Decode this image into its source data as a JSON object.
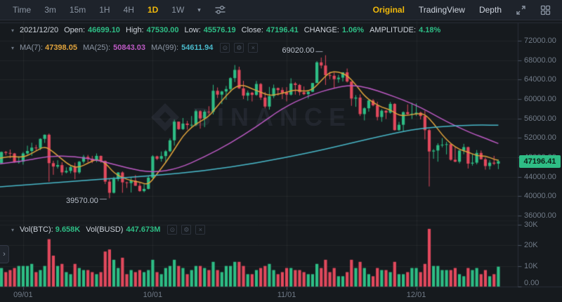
{
  "toolbar": {
    "time_label": "Time",
    "intervals": [
      "3m",
      "15m",
      "1H",
      "4H",
      "1D",
      "1W"
    ],
    "active_interval": "1D",
    "views": [
      "Original",
      "TradingView",
      "Depth"
    ],
    "active_view": "Original"
  },
  "legend": {
    "date": "2021/12/20",
    "open_label": "Open:",
    "open_value": "46699.10",
    "high_label": "High:",
    "high_value": "47530.00",
    "low_label": "Low:",
    "low_value": "45576.19",
    "close_label": "Close:",
    "close_value": "47196.41",
    "change_label": "CHANGE:",
    "change_value": "1.06%",
    "amplitude_label": "AMPLITUDE:",
    "amplitude_value": "4.18%"
  },
  "ma_legend": {
    "ma7_label": "MA(7):",
    "ma7_value": "47398.05",
    "ma25_label": "MA(25):",
    "ma25_value": "50843.03",
    "ma99_label": "MA(99):",
    "ma99_value": "54611.94"
  },
  "volume_legend": {
    "btc_label": "Vol(BTC):",
    "btc_value": "9.658K",
    "busd_label": "Vol(BUSD)",
    "busd_value": "447.673M"
  },
  "price_badge": "47196.41",
  "watermark": "BINANCE",
  "icons": {
    "caret_down": "▾",
    "chevron_right": "›",
    "eye": "⊙",
    "gear": "⚙",
    "close": "×"
  },
  "colors": {
    "up": "#2ebd85",
    "down": "#e2495d",
    "ma7": "#e0a33c",
    "ma25": "#bd5ac4",
    "ma99": "#49b8c9",
    "accent": "#f0b90b",
    "axis_text": "#717b88",
    "grid": "rgba(255,255,255,0.05)",
    "frame": "#2a2f39",
    "tick": "#4d5666",
    "badge_bg": "#2ebd85",
    "annotation": "#9aa2ae"
  },
  "chart_data": {
    "type": "candlestick",
    "interval": "1D",
    "ylim": [
      36000,
      72000
    ],
    "vol_ylim": [
      0,
      30
    ],
    "grid": "on",
    "last_price": 47196.41,
    "y_ticks": [
      {
        "label": "72000.00",
        "value": 72000
      },
      {
        "label": "68000.00",
        "value": 68000
      },
      {
        "label": "64000.00",
        "value": 64000
      },
      {
        "label": "60000.00",
        "value": 60000
      },
      {
        "label": "56000.00",
        "value": 56000
      },
      {
        "label": "52000.00",
        "value": 52000
      },
      {
        "label": "48000.00",
        "value": 48000
      },
      {
        "label": "44000.00",
        "value": 44000
      },
      {
        "label": "40000.00",
        "value": 40000
      },
      {
        "label": "36000.00",
        "value": 36000
      }
    ],
    "vol_ticks": [
      {
        "label": "30K",
        "value": 30
      },
      {
        "label": "20K",
        "value": 20
      },
      {
        "label": "10K",
        "value": 10
      },
      {
        "label": "0.00",
        "value": 0
      }
    ],
    "x_ticks": [
      {
        "label": "09/01",
        "index": 6
      },
      {
        "label": "10/01",
        "index": 36
      },
      {
        "label": "11/01",
        "index": 67
      },
      {
        "label": "12/01",
        "index": 97
      }
    ],
    "annotations": [
      {
        "text": "69020.00",
        "index": 76,
        "price": 69020,
        "anchor": "high"
      },
      {
        "text": "39570.00",
        "index": 26,
        "price": 39570,
        "anchor": "low"
      }
    ],
    "candles": [
      [
        48900,
        49300,
        46300,
        46800,
        11
      ],
      [
        46800,
        49200,
        46600,
        49100,
        9
      ],
      [
        49100,
        49300,
        48400,
        48900,
        7
      ],
      [
        48900,
        49600,
        47800,
        48800,
        8
      ],
      [
        48800,
        48900,
        46900,
        47000,
        9
      ],
      [
        47000,
        48200,
        46700,
        47100,
        10
      ],
      [
        47100,
        49100,
        46500,
        48800,
        10
      ],
      [
        48800,
        50400,
        48600,
        49300,
        10
      ],
      [
        49300,
        51000,
        48300,
        50000,
        11
      ],
      [
        50000,
        50550,
        49400,
        49900,
        7
      ],
      [
        49900,
        51900,
        49500,
        51800,
        8
      ],
      [
        51800,
        52700,
        50970,
        52650,
        10
      ],
      [
        52650,
        52900,
        43000,
        46800,
        23
      ],
      [
        46800,
        47300,
        44400,
        46100,
        15
      ],
      [
        46100,
        47400,
        45700,
        46400,
        10
      ],
      [
        46400,
        47000,
        44300,
        44900,
        11
      ],
      [
        44900,
        45950,
        44700,
        45200,
        7
      ],
      [
        45200,
        46400,
        44700,
        46000,
        6
      ],
      [
        46000,
        46900,
        43500,
        44900,
        11
      ],
      [
        44900,
        47250,
        44600,
        47100,
        9
      ],
      [
        47100,
        48500,
        46700,
        48100,
        8
      ],
      [
        48100,
        48500,
        47000,
        47700,
        8
      ],
      [
        47700,
        48300,
        46800,
        47300,
        7
      ],
      [
        47300,
        48800,
        47000,
        48300,
        6
      ],
      [
        48300,
        48350,
        46880,
        47250,
        7
      ],
      [
        47250,
        47350,
        42500,
        43000,
        17
      ],
      [
        43000,
        43600,
        39570,
        40700,
        18
      ],
      [
        40700,
        44000,
        40550,
        43550,
        13
      ],
      [
        43550,
        44950,
        43070,
        44880,
        9
      ],
      [
        44880,
        45100,
        40700,
        42850,
        14
      ],
      [
        42850,
        42990,
        41700,
        42700,
        6
      ],
      [
        42700,
        43900,
        40750,
        43200,
        8
      ],
      [
        43200,
        44350,
        42100,
        42150,
        7
      ],
      [
        42150,
        42750,
        40900,
        41050,
        8
      ],
      [
        41050,
        42600,
        40800,
        41500,
        7
      ],
      [
        41500,
        44100,
        41400,
        43800,
        8
      ],
      [
        43800,
        48450,
        43300,
        48200,
        13
      ],
      [
        48200,
        48340,
        47440,
        47700,
        7
      ],
      [
        47700,
        49200,
        47100,
        48250,
        6
      ],
      [
        48250,
        49530,
        46900,
        49250,
        9
      ],
      [
        49250,
        51880,
        49070,
        51500,
        10
      ],
      [
        51500,
        55750,
        50400,
        55350,
        13
      ],
      [
        55350,
        55350,
        53650,
        53800,
        10
      ],
      [
        53800,
        56100,
        53630,
        54950,
        9
      ],
      [
        54950,
        55500,
        53700,
        54650,
        6
      ],
      [
        54650,
        56500,
        54100,
        54700,
        8
      ],
      [
        54700,
        57840,
        54400,
        57500,
        10
      ],
      [
        57500,
        57680,
        53900,
        56000,
        10
      ],
      [
        56000,
        57780,
        54200,
        57400,
        9
      ],
      [
        57400,
        58520,
        56810,
        57350,
        8
      ],
      [
        57350,
        62930,
        56830,
        61700,
        12
      ],
      [
        61700,
        62380,
        60200,
        60900,
        8
      ],
      [
        60900,
        61700,
        58960,
        61550,
        7
      ],
      [
        61550,
        62700,
        59850,
        62050,
        10
      ],
      [
        62050,
        64500,
        61400,
        64300,
        10
      ],
      [
        64300,
        67000,
        63500,
        66000,
        12
      ],
      [
        66000,
        66650,
        62100,
        62200,
        12
      ],
      [
        62200,
        63750,
        60000,
        60700,
        10
      ],
      [
        60700,
        61750,
        59650,
        61300,
        6
      ],
      [
        61300,
        61500,
        59500,
        60850,
        6
      ],
      [
        60850,
        63720,
        60650,
        63100,
        8
      ],
      [
        63100,
        63290,
        59820,
        60300,
        9
      ],
      [
        60300,
        61450,
        58100,
        58450,
        10
      ],
      [
        58450,
        62500,
        57820,
        60600,
        11
      ],
      [
        60600,
        62980,
        60170,
        62250,
        8
      ],
      [
        62250,
        62360,
        60700,
        61850,
        6
      ],
      [
        61850,
        62400,
        60000,
        61300,
        7
      ],
      [
        61300,
        62450,
        59510,
        60900,
        9
      ],
      [
        60900,
        64270,
        60700,
        63200,
        9
      ],
      [
        63200,
        63500,
        60900,
        62900,
        8
      ],
      [
        62900,
        63100,
        60750,
        61400,
        8
      ],
      [
        61400,
        62590,
        60800,
        61000,
        7
      ],
      [
        61000,
        61590,
        60100,
        61500,
        6
      ],
      [
        61500,
        63300,
        61400,
        63300,
        6
      ],
      [
        63300,
        67800,
        63300,
        67550,
        11
      ],
      [
        67550,
        68530,
        66300,
        66900,
        9
      ],
      [
        66900,
        69020,
        62900,
        64900,
        13
      ],
      [
        64900,
        65600,
        64100,
        64800,
        7
      ],
      [
        64800,
        65460,
        62300,
        64100,
        9
      ],
      [
        64100,
        64980,
        63360,
        64400,
        5
      ],
      [
        64400,
        65500,
        63600,
        65500,
        5
      ],
      [
        65500,
        66280,
        63400,
        63600,
        7
      ],
      [
        63600,
        63600,
        58600,
        60100,
        13
      ],
      [
        60100,
        60800,
        58400,
        60300,
        9
      ],
      [
        60300,
        60950,
        56500,
        56900,
        12
      ],
      [
        56900,
        58300,
        55600,
        58100,
        9
      ],
      [
        58100,
        59850,
        57400,
        59700,
        6
      ],
      [
        59700,
        60000,
        58480,
        58700,
        5
      ],
      [
        58700,
        59450,
        55600,
        56300,
        9
      ],
      [
        56300,
        57900,
        55320,
        57600,
        8
      ],
      [
        57600,
        57700,
        55900,
        57200,
        8
      ],
      [
        57200,
        59400,
        57000,
        59000,
        7
      ],
      [
        59000,
        59150,
        53500,
        53600,
        12
      ],
      [
        53600,
        55300,
        53430,
        54700,
        6
      ],
      [
        54700,
        57450,
        53300,
        57300,
        6
      ],
      [
        57300,
        58900,
        56750,
        56900,
        7
      ],
      [
        56900,
        59200,
        55900,
        57000,
        9
      ],
      [
        57000,
        59100,
        56500,
        57200,
        9
      ],
      [
        57200,
        57400,
        55800,
        56500,
        7
      ],
      [
        56500,
        57600,
        51700,
        53600,
        11
      ],
      [
        53600,
        53850,
        42000,
        49200,
        28
      ],
      [
        49200,
        49700,
        47700,
        49400,
        10
      ],
      [
        49400,
        50900,
        47100,
        50500,
        10
      ],
      [
        50500,
        51940,
        50050,
        50600,
        8
      ],
      [
        50600,
        51200,
        48600,
        50700,
        8
      ],
      [
        50700,
        50800,
        47300,
        47500,
        8
      ],
      [
        47500,
        50100,
        47000,
        47100,
        9
      ],
      [
        47100,
        49500,
        46750,
        49400,
        6
      ],
      [
        49400,
        50780,
        48630,
        50100,
        5
      ],
      [
        50100,
        50200,
        45700,
        46700,
        9
      ],
      [
        46700,
        48700,
        46290,
        46900,
        8
      ],
      [
        46900,
        49500,
        46550,
        48900,
        9
      ],
      [
        48900,
        49400,
        47540,
        47600,
        6
      ],
      [
        47600,
        47990,
        45460,
        46200,
        8
      ],
      [
        46200,
        47400,
        45500,
        46900,
        5
      ],
      [
        46900,
        48300,
        46400,
        46700,
        6
      ],
      [
        46699.1,
        47530.0,
        45576.19,
        47196.41,
        9.658
      ]
    ],
    "ma_lines": [
      {
        "name": "MA(7)",
        "color_key": "ma7",
        "points": [
          [
            0,
            47700
          ],
          [
            3,
            48300
          ],
          [
            6,
            47900
          ],
          [
            9,
            49300
          ],
          [
            11,
            50300
          ],
          [
            13,
            49100
          ],
          [
            15,
            47600
          ],
          [
            17,
            46200
          ],
          [
            19,
            45900
          ],
          [
            21,
            46800
          ],
          [
            23,
            47600
          ],
          [
            25,
            46900
          ],
          [
            27,
            44800
          ],
          [
            29,
            43800
          ],
          [
            31,
            43200
          ],
          [
            33,
            42900
          ],
          [
            35,
            42300
          ],
          [
            37,
            44600
          ],
          [
            39,
            46900
          ],
          [
            41,
            49600
          ],
          [
            43,
            52400
          ],
          [
            45,
            54200
          ],
          [
            47,
            55400
          ],
          [
            49,
            56400
          ],
          [
            51,
            58600
          ],
          [
            53,
            60700
          ],
          [
            55,
            62500
          ],
          [
            57,
            62900
          ],
          [
            59,
            62100
          ],
          [
            61,
            61400
          ],
          [
            63,
            60700
          ],
          [
            65,
            61000
          ],
          [
            67,
            61400
          ],
          [
            69,
            61900
          ],
          [
            71,
            61600
          ],
          [
            73,
            61900
          ],
          [
            75,
            63800
          ],
          [
            77,
            65600
          ],
          [
            79,
            65600
          ],
          [
            81,
            64900
          ],
          [
            83,
            63000
          ],
          [
            85,
            60600
          ],
          [
            87,
            59300
          ],
          [
            89,
            58300
          ],
          [
            91,
            57800
          ],
          [
            93,
            56600
          ],
          [
            95,
            56600
          ],
          [
            97,
            57000
          ],
          [
            99,
            56900
          ],
          [
            101,
            55000
          ],
          [
            103,
            52600
          ],
          [
            105,
            50800
          ],
          [
            107,
            49600
          ],
          [
            109,
            49100
          ],
          [
            111,
            48300
          ],
          [
            113,
            48300
          ],
          [
            115,
            47600
          ],
          [
            116,
            47398
          ]
        ]
      },
      {
        "name": "MA(25)",
        "color_key": "ma25",
        "points": [
          [
            0,
            46600
          ],
          [
            6,
            47200
          ],
          [
            12,
            48300
          ],
          [
            18,
            48200
          ],
          [
            24,
            47300
          ],
          [
            30,
            45800
          ],
          [
            36,
            44800
          ],
          [
            42,
            45700
          ],
          [
            48,
            48100
          ],
          [
            54,
            50900
          ],
          [
            60,
            54300
          ],
          [
            66,
            58100
          ],
          [
            72,
            60700
          ],
          [
            78,
            62300
          ],
          [
            82,
            62900
          ],
          [
            86,
            62300
          ],
          [
            90,
            61100
          ],
          [
            94,
            59800
          ],
          [
            98,
            58300
          ],
          [
            102,
            56300
          ],
          [
            106,
            54500
          ],
          [
            110,
            52900
          ],
          [
            113,
            51900
          ],
          [
            116,
            50843
          ]
        ]
      },
      {
        "name": "MA(99)",
        "color_key": "ma99",
        "points": [
          [
            0,
            41900
          ],
          [
            12,
            42700
          ],
          [
            24,
            43500
          ],
          [
            36,
            44200
          ],
          [
            48,
            45200
          ],
          [
            60,
            46800
          ],
          [
            72,
            48900
          ],
          [
            80,
            50500
          ],
          [
            88,
            52200
          ],
          [
            96,
            53700
          ],
          [
            102,
            54300
          ],
          [
            108,
            54600
          ],
          [
            112,
            54650
          ],
          [
            116,
            54612
          ]
        ]
      }
    ]
  }
}
